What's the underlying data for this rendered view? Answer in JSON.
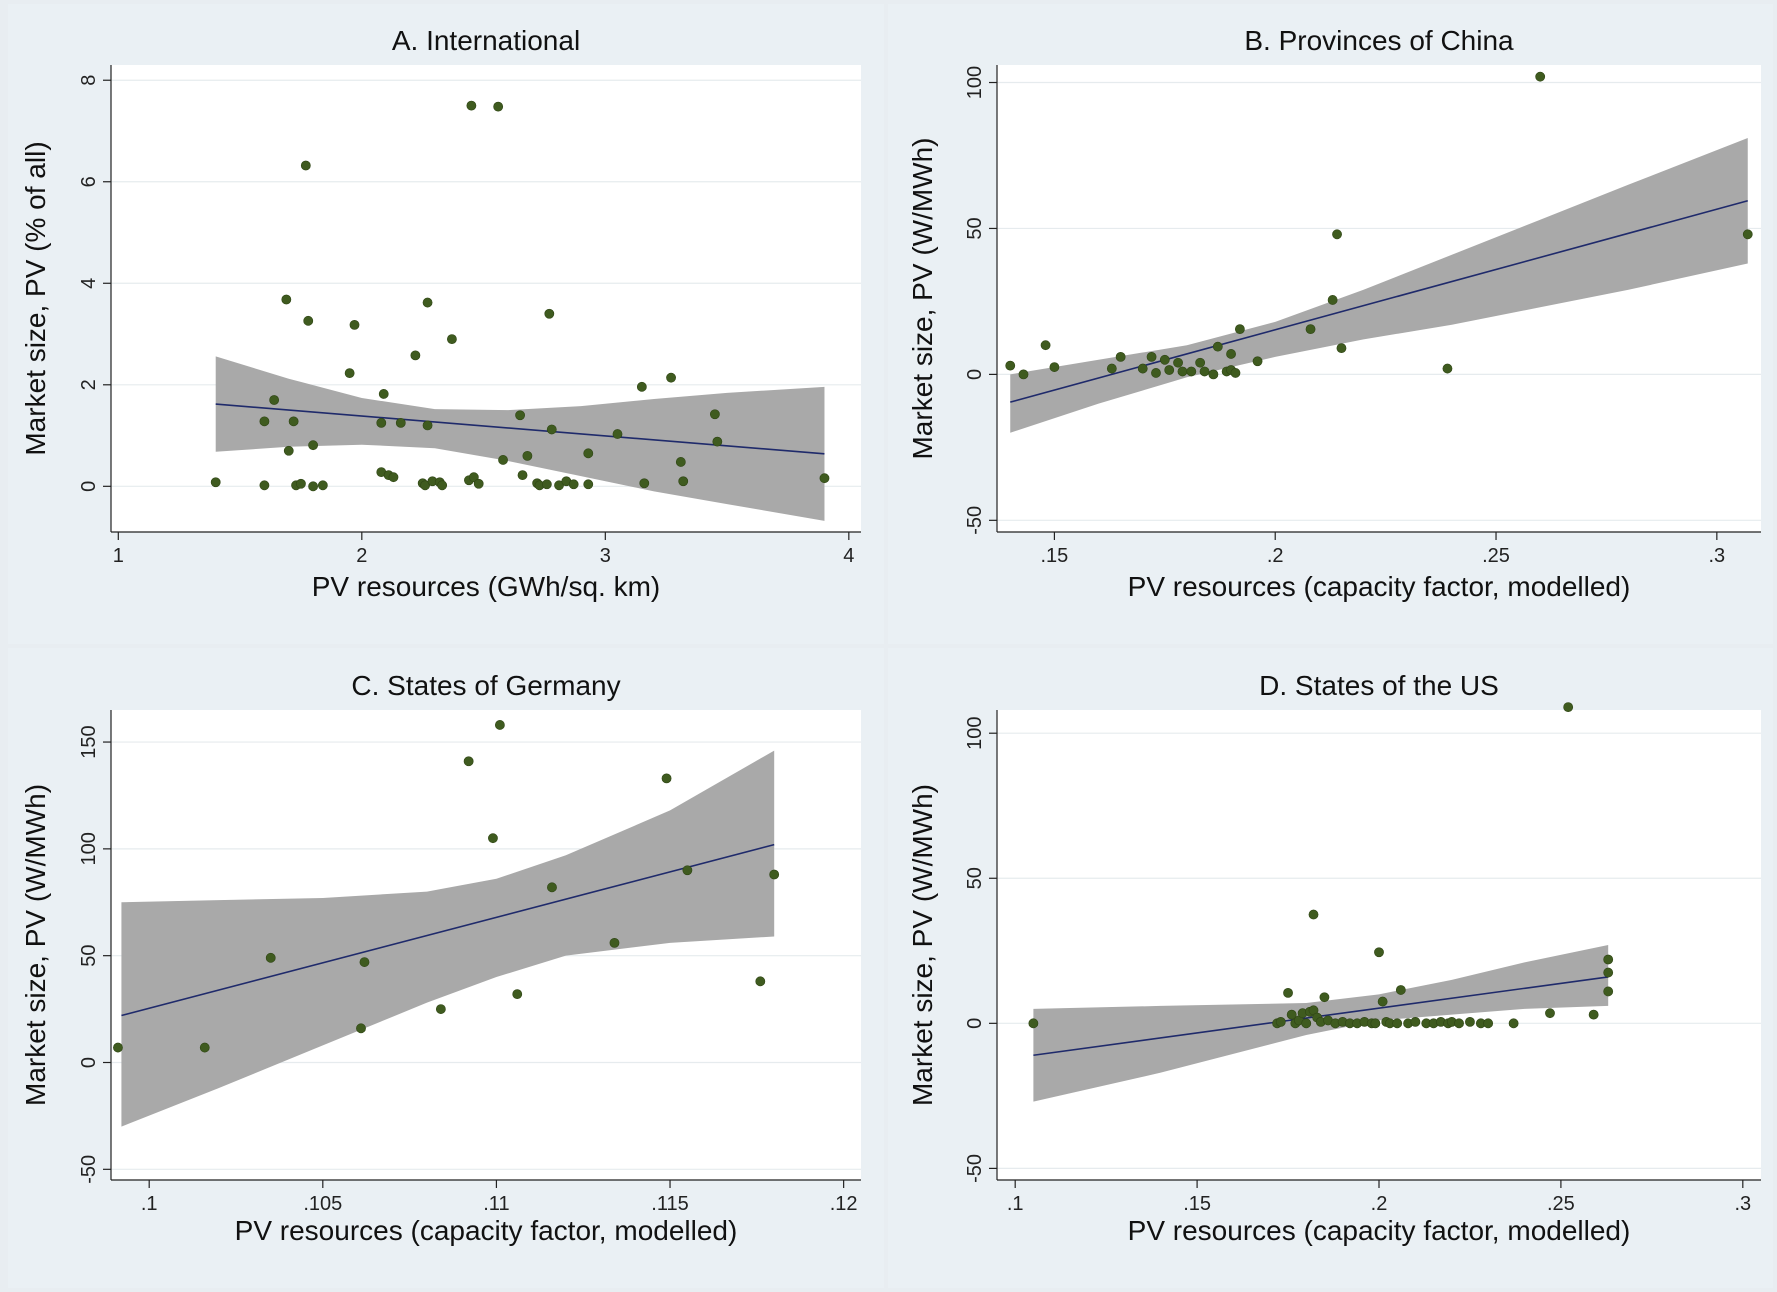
{
  "figure": {
    "colors": {
      "marker": "#3f5b1f",
      "fit_line": "#1f2a6b",
      "ci_band": "#a9a9a9",
      "background": "#eaf0f4"
    }
  },
  "chart_data": [
    {
      "type": "scatter",
      "title": "A. International",
      "xlabel": "PV resources (GWh/sq. km)",
      "ylabel": "Market size, PV (% of all)",
      "xlim": [
        0.97,
        4.05
      ],
      "ylim": [
        -0.9,
        8.3
      ],
      "xticks": [
        {
          "v": 1,
          "label": "1"
        },
        {
          "v": 2,
          "label": "2"
        },
        {
          "v": 3,
          "label": "3"
        },
        {
          "v": 4,
          "label": "4"
        }
      ],
      "yticks": [
        {
          "v": 0,
          "label": "0"
        },
        {
          "v": 2,
          "label": "2"
        },
        {
          "v": 4,
          "label": "4"
        },
        {
          "v": 6,
          "label": "6"
        },
        {
          "v": 8,
          "label": "8"
        }
      ],
      "fit": {
        "x": [
          1.4,
          3.9
        ],
        "y": [
          1.62,
          0.64
        ]
      },
      "ci_band": {
        "x": [
          1.4,
          1.7,
          2.0,
          2.3,
          2.6,
          2.9,
          3.2,
          3.5,
          3.9
        ],
        "lower": [
          0.68,
          0.78,
          0.82,
          0.75,
          0.5,
          0.2,
          -0.1,
          -0.35,
          -0.68
        ],
        "upper": [
          2.56,
          2.12,
          1.74,
          1.52,
          1.5,
          1.58,
          1.72,
          1.84,
          1.96
        ]
      },
      "points": [
        [
          1.4,
          0.08
        ],
        [
          1.6,
          1.28
        ],
        [
          1.6,
          0.02
        ],
        [
          1.64,
          1.7
        ],
        [
          1.69,
          3.68
        ],
        [
          1.7,
          0.7
        ],
        [
          1.72,
          1.28
        ],
        [
          1.73,
          0.02
        ],
        [
          1.75,
          0.05
        ],
        [
          1.77,
          6.32
        ],
        [
          1.78,
          3.26
        ],
        [
          1.8,
          0.81
        ],
        [
          1.8,
          0.0
        ],
        [
          1.84,
          0.02
        ],
        [
          1.95,
          2.23
        ],
        [
          1.97,
          3.18
        ],
        [
          2.08,
          0.28
        ],
        [
          2.08,
          1.25
        ],
        [
          2.09,
          1.82
        ],
        [
          2.11,
          0.22
        ],
        [
          2.13,
          0.18
        ],
        [
          2.16,
          1.25
        ],
        [
          2.22,
          2.58
        ],
        [
          2.25,
          0.06
        ],
        [
          2.26,
          0.02
        ],
        [
          2.27,
          3.62
        ],
        [
          2.27,
          1.2
        ],
        [
          2.29,
          0.1
        ],
        [
          2.32,
          0.08
        ],
        [
          2.33,
          0.02
        ],
        [
          2.37,
          2.9
        ],
        [
          2.44,
          0.12
        ],
        [
          2.45,
          7.5
        ],
        [
          2.46,
          0.18
        ],
        [
          2.48,
          0.05
        ],
        [
          2.56,
          7.48
        ],
        [
          2.58,
          0.52
        ],
        [
          2.65,
          1.4
        ],
        [
          2.66,
          0.22
        ],
        [
          2.68,
          0.6
        ],
        [
          2.72,
          0.06
        ],
        [
          2.73,
          0.02
        ],
        [
          2.76,
          0.04
        ],
        [
          2.77,
          3.4
        ],
        [
          2.78,
          1.12
        ],
        [
          2.81,
          0.02
        ],
        [
          2.84,
          0.1
        ],
        [
          2.87,
          0.04
        ],
        [
          2.93,
          0.65
        ],
        [
          2.93,
          0.04
        ],
        [
          3.05,
          1.03
        ],
        [
          3.15,
          1.96
        ],
        [
          3.16,
          0.06
        ],
        [
          3.27,
          2.14
        ],
        [
          3.31,
          0.48
        ],
        [
          3.32,
          0.1
        ],
        [
          3.45,
          1.42
        ],
        [
          3.46,
          0.88
        ],
        [
          3.9,
          0.16
        ]
      ]
    },
    {
      "type": "scatter",
      "title": "B. Provinces of China",
      "xlabel": "PV resources (capacity factor, modelled)",
      "ylabel": "Market size, PV (W/MWh)",
      "xlim": [
        0.137,
        0.31
      ],
      "ylim": [
        -54,
        106
      ],
      "xticks": [
        {
          "v": 0.15,
          "label": ".15"
        },
        {
          "v": 0.2,
          "label": ".2"
        },
        {
          "v": 0.25,
          "label": ".25"
        },
        {
          "v": 0.3,
          "label": ".3"
        }
      ],
      "yticks": [
        {
          "v": -50,
          "label": "-50"
        },
        {
          "v": 0,
          "label": "0"
        },
        {
          "v": 50,
          "label": "50"
        },
        {
          "v": 100,
          "label": "100"
        }
      ],
      "fit": {
        "x": [
          0.14,
          0.307
        ],
        "y": [
          -9.5,
          59.5
        ]
      },
      "ci_band": {
        "x": [
          0.14,
          0.16,
          0.18,
          0.2,
          0.22,
          0.24,
          0.26,
          0.28,
          0.307
        ],
        "lower": [
          -20,
          -10,
          -1,
          6,
          12,
          17,
          23,
          29,
          38
        ],
        "upper": [
          0,
          5,
          10,
          18,
          29,
          41,
          53,
          65,
          81
        ]
      },
      "points": [
        [
          0.14,
          3
        ],
        [
          0.143,
          0
        ],
        [
          0.148,
          10
        ],
        [
          0.15,
          2.5
        ],
        [
          0.163,
          2
        ],
        [
          0.165,
          6
        ],
        [
          0.17,
          2
        ],
        [
          0.172,
          6
        ],
        [
          0.173,
          0.5
        ],
        [
          0.175,
          5
        ],
        [
          0.176,
          1.5
        ],
        [
          0.178,
          4
        ],
        [
          0.179,
          1
        ],
        [
          0.181,
          1
        ],
        [
          0.183,
          4
        ],
        [
          0.184,
          1
        ],
        [
          0.186,
          0
        ],
        [
          0.187,
          9.5
        ],
        [
          0.189,
          1
        ],
        [
          0.19,
          7
        ],
        [
          0.19,
          1.5
        ],
        [
          0.191,
          0.5
        ],
        [
          0.192,
          15.5
        ],
        [
          0.196,
          4.5
        ],
        [
          0.208,
          15.5
        ],
        [
          0.213,
          25.5
        ],
        [
          0.214,
          48
        ],
        [
          0.215,
          9
        ],
        [
          0.239,
          2
        ],
        [
          0.26,
          102
        ],
        [
          0.307,
          48
        ]
      ]
    },
    {
      "type": "scatter",
      "title": "C. States of Germany",
      "xlabel": "PV resources (capacity factor, modelled)",
      "ylabel": "Market size, PV (W/MWh)",
      "xlim": [
        0.0989,
        0.1205
      ],
      "ylim": [
        -55,
        165
      ],
      "xticks": [
        {
          "v": 0.1,
          "label": ".1"
        },
        {
          "v": 0.105,
          "label": ".105"
        },
        {
          "v": 0.11,
          "label": ".11"
        },
        {
          "v": 0.115,
          "label": ".115"
        },
        {
          "v": 0.12,
          "label": ".12"
        }
      ],
      "yticks": [
        {
          "v": -50,
          "label": "-50"
        },
        {
          "v": 0,
          "label": "0"
        },
        {
          "v": 50,
          "label": "50"
        },
        {
          "v": 100,
          "label": "100"
        },
        {
          "v": 150,
          "label": "150"
        }
      ],
      "fit": {
        "x": [
          0.0992,
          0.118
        ],
        "y": [
          22,
          102
        ]
      },
      "ci_band": {
        "x": [
          0.0992,
          0.102,
          0.105,
          0.108,
          0.11,
          0.112,
          0.115,
          0.118
        ],
        "lower": [
          -30,
          -12,
          8,
          28,
          40,
          50,
          56,
          59
        ],
        "upper": [
          75,
          76,
          77,
          80,
          86,
          97,
          118,
          146
        ]
      },
      "points": [
        [
          0.0991,
          7
        ],
        [
          0.1016,
          7
        ],
        [
          0.1035,
          49
        ],
        [
          0.1062,
          47
        ],
        [
          0.1061,
          16
        ],
        [
          0.1084,
          25
        ],
        [
          0.1092,
          141
        ],
        [
          0.1099,
          105
        ],
        [
          0.1101,
          158
        ],
        [
          0.1106,
          32
        ],
        [
          0.1116,
          82
        ],
        [
          0.1134,
          56
        ],
        [
          0.1149,
          133
        ],
        [
          0.1155,
          90
        ],
        [
          0.1176,
          38
        ],
        [
          0.118,
          88
        ]
      ]
    },
    {
      "type": "scatter",
      "title": "D. States of the US",
      "xlabel": "PV resources (capacity factor, modelled)",
      "ylabel": "Market size, PV (W/MWh)",
      "xlim": [
        0.095,
        0.305
      ],
      "ylim": [
        -54,
        108
      ],
      "xticks": [
        {
          "v": 0.1,
          "label": ".1"
        },
        {
          "v": 0.15,
          "label": ".15"
        },
        {
          "v": 0.2,
          "label": ".2"
        },
        {
          "v": 0.25,
          "label": ".25"
        },
        {
          "v": 0.3,
          "label": ".3"
        }
      ],
      "yticks": [
        {
          "v": -50,
          "label": "-50"
        },
        {
          "v": 0,
          "label": "0"
        },
        {
          "v": 50,
          "label": "50"
        },
        {
          "v": 100,
          "label": "100"
        }
      ],
      "fit": {
        "x": [
          0.105,
          0.263
        ],
        "y": [
          -11,
          16
        ]
      },
      "ci_band": {
        "x": [
          0.105,
          0.14,
          0.18,
          0.2,
          0.22,
          0.24,
          0.263
        ],
        "lower": [
          -27,
          -17,
          -4,
          1,
          3,
          5,
          6
        ],
        "upper": [
          5,
          6,
          7,
          10,
          15,
          21,
          27
        ]
      },
      "points": [
        [
          0.105,
          0
        ],
        [
          0.172,
          0
        ],
        [
          0.173,
          0.5
        ],
        [
          0.175,
          10.5
        ],
        [
          0.176,
          3
        ],
        [
          0.177,
          0
        ],
        [
          0.178,
          1
        ],
        [
          0.179,
          3.5
        ],
        [
          0.18,
          0
        ],
        [
          0.181,
          4
        ],
        [
          0.182,
          37.5
        ],
        [
          0.182,
          4.5
        ],
        [
          0.183,
          2
        ],
        [
          0.184,
          0.5
        ],
        [
          0.185,
          9
        ],
        [
          0.186,
          1
        ],
        [
          0.188,
          0
        ],
        [
          0.19,
          0.5
        ],
        [
          0.192,
          0
        ],
        [
          0.194,
          0
        ],
        [
          0.196,
          0.5
        ],
        [
          0.198,
          0
        ],
        [
          0.199,
          0
        ],
        [
          0.2,
          24.5
        ],
        [
          0.201,
          7.5
        ],
        [
          0.202,
          0.5
        ],
        [
          0.203,
          0
        ],
        [
          0.205,
          0
        ],
        [
          0.206,
          11.5
        ],
        [
          0.208,
          0
        ],
        [
          0.21,
          0.5
        ],
        [
          0.213,
          0
        ],
        [
          0.215,
          0
        ],
        [
          0.217,
          0.5
        ],
        [
          0.219,
          0
        ],
        [
          0.22,
          0.5
        ],
        [
          0.222,
          0
        ],
        [
          0.225,
          0.5
        ],
        [
          0.228,
          0
        ],
        [
          0.23,
          0
        ],
        [
          0.237,
          0
        ],
        [
          0.247,
          3.5
        ],
        [
          0.252,
          109
        ],
        [
          0.259,
          3
        ],
        [
          0.263,
          22
        ],
        [
          0.263,
          17.5
        ],
        [
          0.263,
          11
        ]
      ]
    }
  ]
}
